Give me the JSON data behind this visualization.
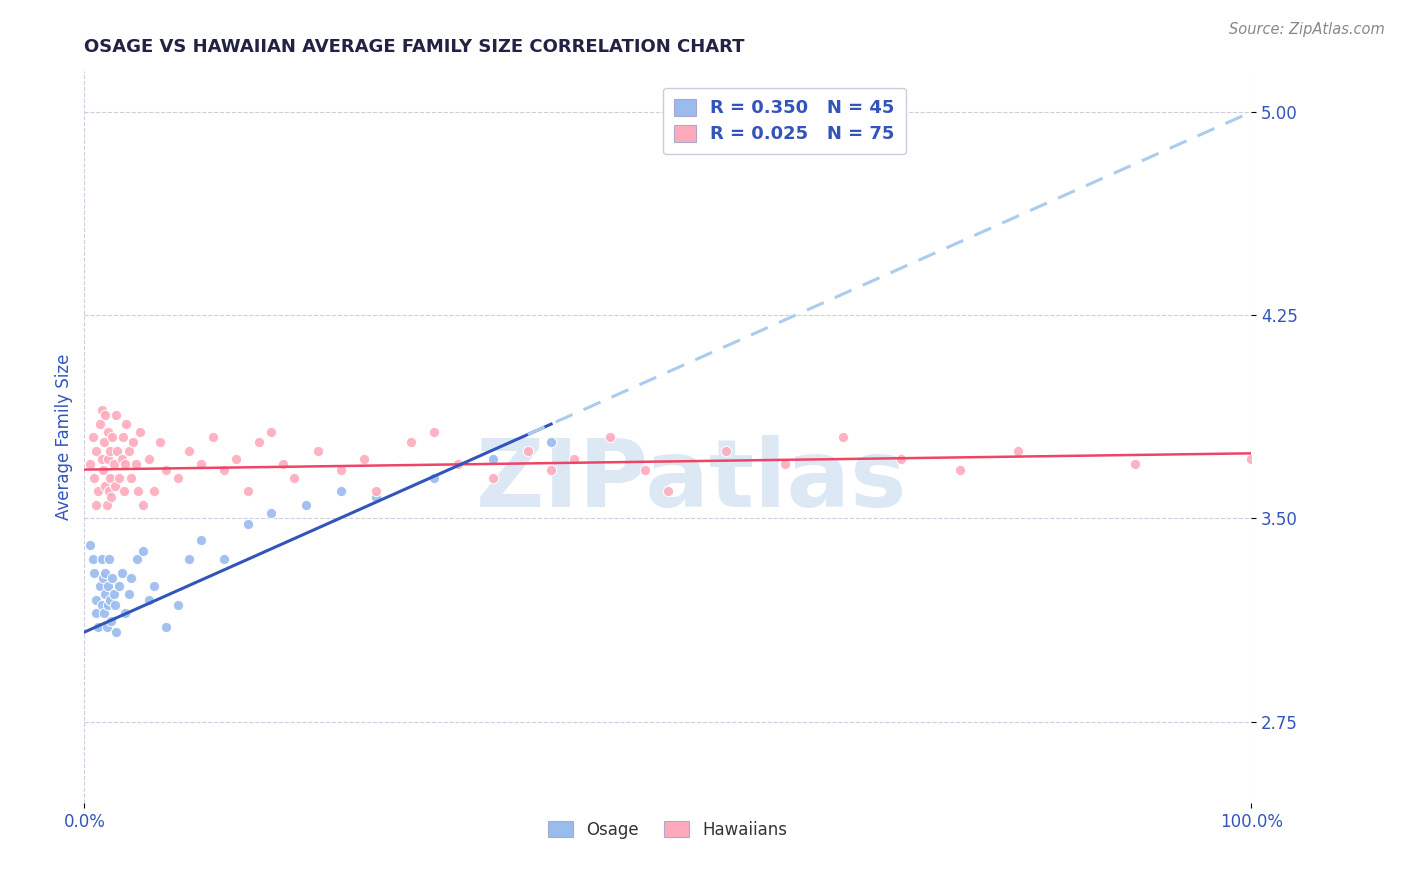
{
  "title": "OSAGE VS HAWAIIAN AVERAGE FAMILY SIZE CORRELATION CHART",
  "source_text": "Source: ZipAtlas.com",
  "ylabel": "Average Family Size",
  "xlim": [
    0.0,
    1.0
  ],
  "ylim": [
    2.45,
    5.15
  ],
  "yticks": [
    2.75,
    3.5,
    4.25,
    5.0
  ],
  "ytick_labels": [
    "2.75",
    "3.50",
    "4.25",
    "5.00"
  ],
  "xtick_positions": [
    0.0,
    1.0
  ],
  "xtick_labels": [
    "0.0%",
    "100.0%"
  ],
  "osage_R": 0.35,
  "osage_N": 45,
  "hawaiian_R": 0.025,
  "hawaiian_N": 75,
  "blue_scatter_color": "#99BBEE",
  "pink_scatter_color": "#FFAABC",
  "blue_line_color": "#3355BB",
  "pink_line_color": "#EE4466",
  "dashed_line_color": "#AACCEE",
  "title_color": "#222244",
  "tick_color": "#3355BB",
  "watermark_color": "#DDE8F5",
  "background_color": "#FFFFFF",
  "grid_color": "#CCCCDD",
  "legend_text_color": "#3355BB",
  "source_color": "#888888",
  "blue_line_intercept": 3.08,
  "blue_line_slope": 1.92,
  "pink_line_intercept": 3.68,
  "pink_line_slope": 0.06,
  "osage_x": [
    0.005,
    0.007,
    0.008,
    0.01,
    0.01,
    0.012,
    0.013,
    0.015,
    0.015,
    0.016,
    0.017,
    0.018,
    0.018,
    0.019,
    0.02,
    0.02,
    0.021,
    0.022,
    0.023,
    0.024,
    0.025,
    0.026,
    0.027,
    0.03,
    0.032,
    0.035,
    0.038,
    0.04,
    0.045,
    0.05,
    0.055,
    0.06,
    0.07,
    0.08,
    0.09,
    0.1,
    0.12,
    0.14,
    0.16,
    0.19,
    0.22,
    0.25,
    0.3,
    0.35,
    0.4
  ],
  "osage_y": [
    3.4,
    3.35,
    3.3,
    3.2,
    3.15,
    3.1,
    3.25,
    3.18,
    3.35,
    3.28,
    3.15,
    3.22,
    3.3,
    3.1,
    3.18,
    3.25,
    3.35,
    3.2,
    3.12,
    3.28,
    3.22,
    3.18,
    3.08,
    3.25,
    3.3,
    3.15,
    3.22,
    3.28,
    3.35,
    3.38,
    3.2,
    3.25,
    3.1,
    3.18,
    3.35,
    3.42,
    3.35,
    3.48,
    3.52,
    3.55,
    3.6,
    3.58,
    3.65,
    3.72,
    3.78
  ],
  "hawaiian_x": [
    0.005,
    0.007,
    0.008,
    0.01,
    0.01,
    0.012,
    0.013,
    0.015,
    0.015,
    0.016,
    0.017,
    0.018,
    0.018,
    0.019,
    0.02,
    0.02,
    0.021,
    0.022,
    0.022,
    0.023,
    0.024,
    0.025,
    0.026,
    0.027,
    0.028,
    0.03,
    0.032,
    0.033,
    0.034,
    0.035,
    0.036,
    0.038,
    0.04,
    0.042,
    0.044,
    0.046,
    0.048,
    0.05,
    0.055,
    0.06,
    0.065,
    0.07,
    0.08,
    0.09,
    0.1,
    0.11,
    0.12,
    0.13,
    0.14,
    0.15,
    0.16,
    0.17,
    0.18,
    0.2,
    0.22,
    0.24,
    0.25,
    0.28,
    0.3,
    0.32,
    0.35,
    0.38,
    0.4,
    0.42,
    0.45,
    0.48,
    0.5,
    0.55,
    0.6,
    0.65,
    0.7,
    0.75,
    0.8,
    0.9,
    1.0
  ],
  "hawaiian_y": [
    3.7,
    3.8,
    3.65,
    3.55,
    3.75,
    3.6,
    3.85,
    3.72,
    3.9,
    3.68,
    3.78,
    3.62,
    3.88,
    3.55,
    3.72,
    3.82,
    3.6,
    3.75,
    3.65,
    3.58,
    3.8,
    3.7,
    3.62,
    3.88,
    3.75,
    3.65,
    3.72,
    3.8,
    3.6,
    3.7,
    3.85,
    3.75,
    3.65,
    3.78,
    3.7,
    3.6,
    3.82,
    3.55,
    3.72,
    3.6,
    3.78,
    3.68,
    3.65,
    3.75,
    3.7,
    3.8,
    3.68,
    3.72,
    3.6,
    3.78,
    3.82,
    3.7,
    3.65,
    3.75,
    3.68,
    3.72,
    3.6,
    3.78,
    3.82,
    3.7,
    3.65,
    3.75,
    3.68,
    3.72,
    3.8,
    3.68,
    3.6,
    3.75,
    3.7,
    3.8,
    3.72,
    3.68,
    3.75,
    3.7,
    3.72
  ]
}
